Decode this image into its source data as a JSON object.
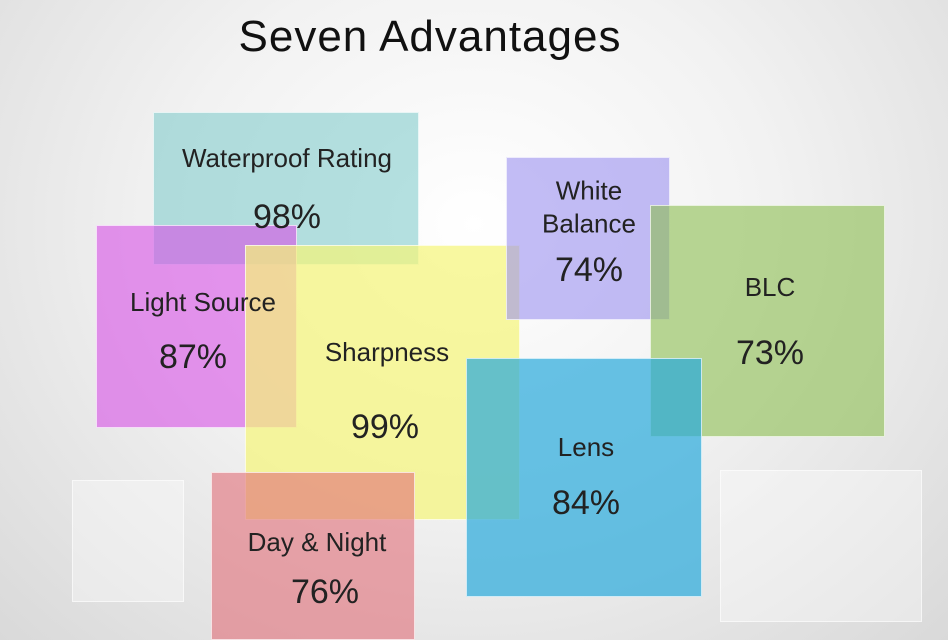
{
  "title": "Seven Advantages",
  "boxes": [
    {
      "label": "Waterproof Rating",
      "value": "98%"
    },
    {
      "label": "Light Source",
      "value": "87%"
    },
    {
      "label": "Sharpness",
      "value": "99%"
    },
    {
      "label": "White Balance",
      "value": "74%"
    },
    {
      "label": "BLC",
      "value": "73%"
    },
    {
      "label": "Lens",
      "value": "84%"
    },
    {
      "label": "Day & Night",
      "value": "76%"
    }
  ]
}
